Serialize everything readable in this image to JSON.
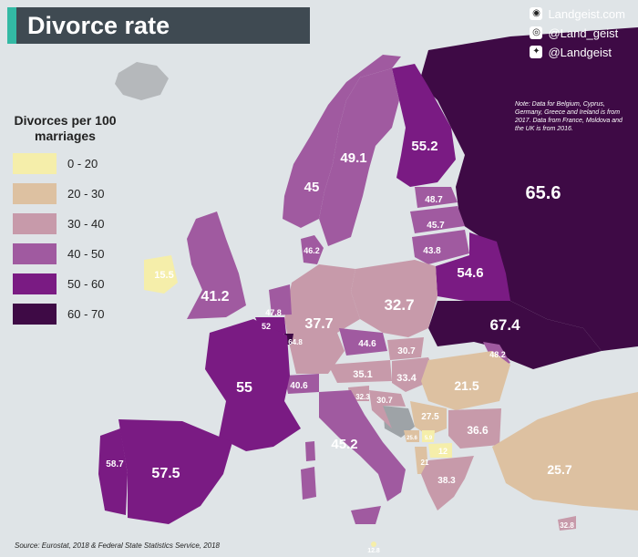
{
  "title": "Divorce rate",
  "socials": [
    {
      "icon": "globe-icon",
      "text": "Landgeist.com"
    },
    {
      "icon": "instagram-icon",
      "text": "@Land_geist"
    },
    {
      "icon": "twitter-icon",
      "text": "@Landgeist"
    }
  ],
  "legend": {
    "title": "Divorces per 100 marriages",
    "items": [
      {
        "label": "0 - 20",
        "color": "#f5eeaa"
      },
      {
        "label": "20 - 30",
        "color": "#ddc1a1"
      },
      {
        "label": "30 - 40",
        "color": "#c79aaa"
      },
      {
        "label": "40 - 50",
        "color": "#a05aa0"
      },
      {
        "label": "50 - 60",
        "color": "#7a1b83"
      },
      {
        "label": "60 - 70",
        "color": "#3e0a45"
      }
    ]
  },
  "note": "Note: Data for Belgium, Cyprus, Germany, Greece and Ireland is from 2017. Data from France, Moldova and the UK is from 2016.",
  "source": "Source: Eurostat, 2018 & Federal State Statistics Service, 2018",
  "country_values": {
    "russia": "65.6",
    "finland": "55.2",
    "sweden": "49.1",
    "norway": "45",
    "estonia": "48.7",
    "latvia": "45.7",
    "lithuania": "43.8",
    "belarus": "54.6",
    "ukraine": "67.4",
    "moldova": "48.2",
    "denmark": "46.2",
    "ireland": "15.5",
    "uk": "41.2",
    "netherlands": "47.8",
    "belgium": "52",
    "luxembourg": "64.8",
    "germany": "37.7",
    "poland": "32.7",
    "czechia": "44.6",
    "slovakia": "30.7",
    "austria": "35.1",
    "hungary": "33.4",
    "switzerland": "40.6",
    "slovenia": "32.3",
    "croatia": "30.7",
    "romania": "21.5",
    "serbia": "27.5",
    "bulgaria": "36.6",
    "montenegro": "25.6",
    "kosovo": "5.9",
    "north_macedonia": "12",
    "albania": "21",
    "greece": "38.3",
    "turkey": "25.7",
    "cyprus": "32.8",
    "malta": "12.8",
    "france": "55",
    "spain": "57.5",
    "portugal": "58.7",
    "italy": "45.2"
  }
}
